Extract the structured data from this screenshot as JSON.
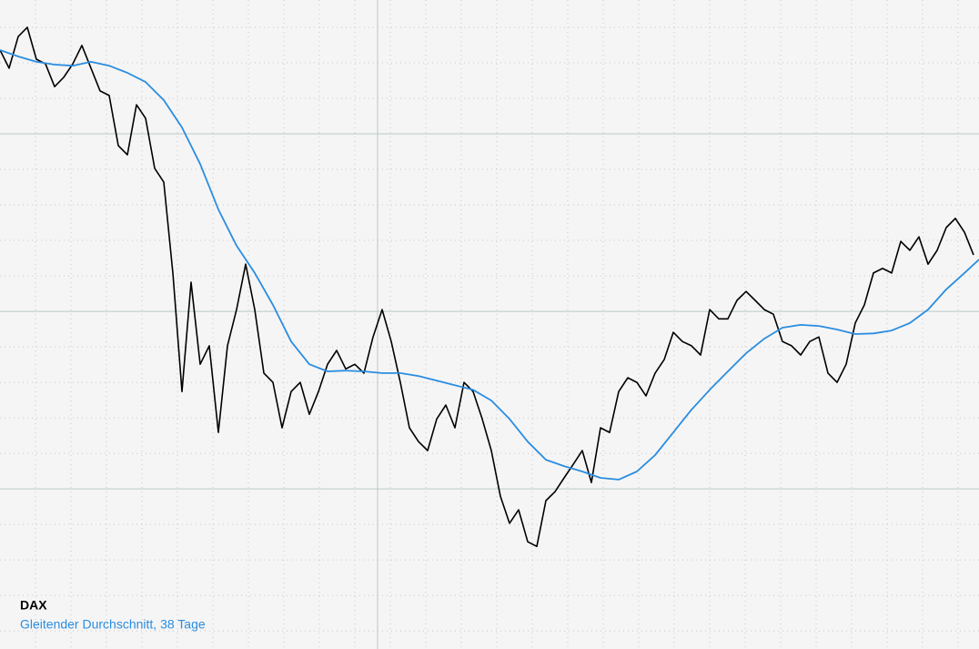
{
  "chart_data": {
    "type": "line",
    "xlim": [
      0,
      107.6
    ],
    "ylim": [
      0.49,
      18.77
    ],
    "xticks": [
      41.5
    ],
    "xticks_minor": [
      3.9,
      7.8,
      11.7,
      15.6,
      19.5,
      23.4,
      27.3,
      31.2,
      35.1,
      39,
      42.9,
      46.8,
      50.7,
      54.6,
      58.5,
      62.4,
      66.3,
      70.2,
      74.1,
      78,
      81.9,
      85.8,
      89.7,
      93.6,
      97.5,
      101.4,
      105.3
    ],
    "yticks": [
      5,
      10,
      15
    ],
    "yticks_minor": [
      1,
      2,
      3,
      4,
      6,
      7,
      8,
      9,
      11,
      12,
      13,
      14,
      16,
      17,
      18
    ],
    "grid": true,
    "legend": "lower left",
    "series": [
      {
        "name": "DAX",
        "color": "#000000",
        "x": [
          0,
          1,
          2,
          3,
          4,
          5,
          6,
          7,
          8,
          9,
          10,
          11,
          12,
          13,
          14,
          15,
          16,
          17,
          18,
          19,
          20,
          21,
          22,
          23,
          24,
          25,
          26,
          27,
          28,
          29,
          30,
          31,
          32,
          33,
          34,
          35,
          36,
          37,
          38,
          39,
          40,
          41,
          42,
          43,
          44,
          45,
          46,
          47,
          48,
          49,
          50,
          51,
          52,
          53,
          54,
          55,
          56,
          57,
          58,
          59,
          60,
          61,
          62,
          63,
          64,
          65,
          66,
          67,
          68,
          69,
          70,
          71,
          72,
          73,
          74,
          75,
          76,
          77,
          78,
          79,
          80,
          81,
          82,
          83,
          84,
          85,
          86,
          87,
          88,
          89,
          90,
          91,
          92,
          93,
          94,
          95,
          96,
          97,
          98,
          99,
          100,
          101,
          102,
          103,
          104,
          105,
          106,
          107
        ],
        "values": [
          17.36,
          16.85,
          17.74,
          18.0,
          17.1,
          16.97,
          16.33,
          16.59,
          16.97,
          17.49,
          16.85,
          16.21,
          16.08,
          14.67,
          14.41,
          15.82,
          15.44,
          14.03,
          13.64,
          11.08,
          7.74,
          10.82,
          8.51,
          9.03,
          6.59,
          9.03,
          10.05,
          11.33,
          10.05,
          8.26,
          8.0,
          6.72,
          7.74,
          8.0,
          7.1,
          7.74,
          8.51,
          8.9,
          8.38,
          8.51,
          8.26,
          9.28,
          10.05,
          9.15,
          8.0,
          6.72,
          6.33,
          6.08,
          6.97,
          7.36,
          6.72,
          8.0,
          7.74,
          6.97,
          6.08,
          4.79,
          4.03,
          4.41,
          3.51,
          3.38,
          4.67,
          4.92,
          5.31,
          5.69,
          6.08,
          5.18,
          6.72,
          6.59,
          7.74,
          8.13,
          8.0,
          7.62,
          8.26,
          8.64,
          9.41,
          9.15,
          9.03,
          8.77,
          10.05,
          9.79,
          9.79,
          10.31,
          10.56,
          10.31,
          10.05,
          9.92,
          9.15,
          9.03,
          8.77,
          9.15,
          9.28,
          8.26,
          8.0,
          8.51,
          9.67,
          10.18,
          11.08,
          11.21,
          11.08,
          11.97,
          11.72,
          12.1,
          11.33,
          11.72,
          12.36,
          12.62,
          12.23,
          11.59
        ]
      },
      {
        "name": "Gleitender Durchschnitt, 38 Tage",
        "color": "#2a8de0",
        "x": [
          0,
          2,
          4,
          6,
          8,
          10,
          12,
          14,
          16,
          18,
          20,
          22,
          24,
          26,
          28,
          30,
          32,
          34,
          36,
          38,
          40,
          42,
          44,
          46,
          48,
          50,
          52,
          54,
          56,
          58,
          60,
          62,
          64,
          66,
          68,
          70,
          72,
          74,
          76,
          78,
          80,
          82,
          84,
          86,
          88,
          90,
          92,
          94,
          96,
          98,
          100,
          102,
          104,
          106,
          107.6
        ],
        "values": [
          17.36,
          17.18,
          17.03,
          16.95,
          16.92,
          17.03,
          16.92,
          16.72,
          16.46,
          15.95,
          15.18,
          14.15,
          12.87,
          11.85,
          11.08,
          10.18,
          9.15,
          8.51,
          8.31,
          8.33,
          8.31,
          8.26,
          8.26,
          8.18,
          8.05,
          7.92,
          7.79,
          7.49,
          6.97,
          6.33,
          5.82,
          5.64,
          5.49,
          5.31,
          5.26,
          5.49,
          5.95,
          6.59,
          7.23,
          7.79,
          8.31,
          8.82,
          9.23,
          9.54,
          9.62,
          9.59,
          9.49,
          9.36,
          9.38,
          9.46,
          9.67,
          10.05,
          10.62,
          11.08,
          11.46
        ]
      }
    ]
  }
}
